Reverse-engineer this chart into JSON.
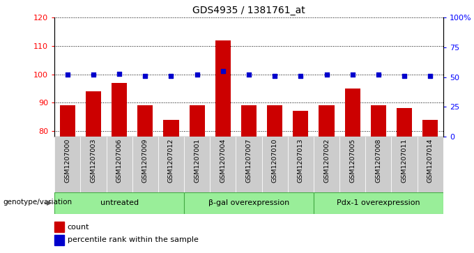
{
  "title": "GDS4935 / 1381761_at",
  "samples": [
    "GSM1207000",
    "GSM1207003",
    "GSM1207006",
    "GSM1207009",
    "GSM1207012",
    "GSM1207001",
    "GSM1207004",
    "GSM1207007",
    "GSM1207010",
    "GSM1207013",
    "GSM1207002",
    "GSM1207005",
    "GSM1207008",
    "GSM1207011",
    "GSM1207014"
  ],
  "counts": [
    89,
    94,
    97,
    89,
    84,
    89,
    112,
    89,
    89,
    87,
    89,
    95,
    89,
    88,
    84
  ],
  "percentiles": [
    52,
    52,
    53,
    51,
    51,
    52,
    55,
    52,
    51,
    51,
    52,
    52,
    52,
    51,
    51
  ],
  "ylim_left": [
    78,
    120
  ],
  "ylim_right": [
    0,
    100
  ],
  "yticks_left": [
    80,
    90,
    100,
    110,
    120
  ],
  "yticks_right": [
    0,
    25,
    50,
    75,
    100
  ],
  "ytick_labels_right": [
    "0",
    "25",
    "50",
    "75",
    "100%"
  ],
  "bar_color": "#cc0000",
  "scatter_color": "#0000cc",
  "groups": [
    {
      "label": "untreated",
      "start": 0,
      "end": 5
    },
    {
      "label": "β-gal overexpression",
      "start": 5,
      "end": 10
    },
    {
      "label": "Pdx-1 overexpression",
      "start": 10,
      "end": 15
    }
  ],
  "group_bg_color": "#99ee99",
  "xlabel_area": "genotype/variation",
  "legend_count_label": "count",
  "legend_pct_label": "percentile rank within the sample",
  "bg_plot_color": "#ffffff",
  "xlabels_bg_color": "#cccccc",
  "title_color": "black"
}
